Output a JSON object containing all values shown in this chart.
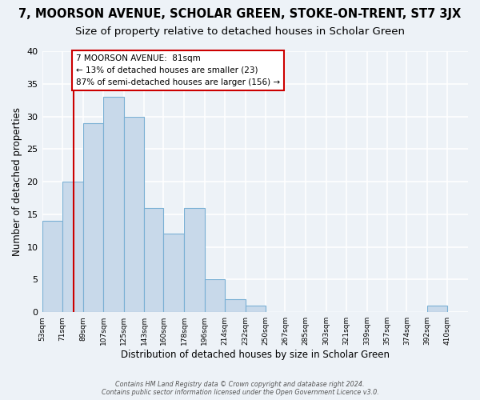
{
  "title": "7, MOORSON AVENUE, SCHOLAR GREEN, STOKE-ON-TRENT, ST7 3JX",
  "subtitle": "Size of property relative to detached houses in Scholar Green",
  "xlabel": "Distribution of detached houses by size in Scholar Green",
  "ylabel": "Number of detached properties",
  "bar_values": [
    14,
    20,
    29,
    33,
    30,
    16,
    12,
    16,
    5,
    2,
    1,
    0,
    0,
    0,
    0,
    0,
    0,
    0,
    0,
    1
  ],
  "bar_left_edges": [
    53,
    71,
    89,
    107,
    125,
    143,
    160,
    178,
    196,
    214,
    232,
    250,
    267,
    285,
    303,
    321,
    339,
    357,
    374,
    392
  ],
  "bar_widths": [
    18,
    18,
    18,
    18,
    18,
    17,
    18,
    18,
    18,
    18,
    18,
    17,
    18,
    18,
    18,
    18,
    18,
    17,
    18,
    18
  ],
  "tick_labels": [
    "53sqm",
    "71sqm",
    "89sqm",
    "107sqm",
    "125sqm",
    "143sqm",
    "160sqm",
    "178sqm",
    "196sqm",
    "214sqm",
    "232sqm",
    "250sqm",
    "267sqm",
    "285sqm",
    "303sqm",
    "321sqm",
    "339sqm",
    "357sqm",
    "374sqm",
    "392sqm",
    "410sqm"
  ],
  "bar_color": "#c8d9ea",
  "bar_edge_color": "#7ab0d4",
  "reference_line_x": 81,
  "reference_line_color": "#cc0000",
  "annotation_text": "7 MOORSON AVENUE:  81sqm\n← 13% of detached houses are smaller (23)\n87% of semi-detached houses are larger (156) →",
  "annotation_box_color": "white",
  "annotation_box_edge_color": "#cc0000",
  "ylim": [
    0,
    40
  ],
  "yticks": [
    0,
    5,
    10,
    15,
    20,
    25,
    30,
    35,
    40
  ],
  "footer_line1": "Contains HM Land Registry data © Crown copyright and database right 2024.",
  "footer_line2": "Contains public sector information licensed under the Open Government Licence v3.0.",
  "title_fontsize": 10.5,
  "subtitle_fontsize": 9.5,
  "background_color": "#edf2f7"
}
